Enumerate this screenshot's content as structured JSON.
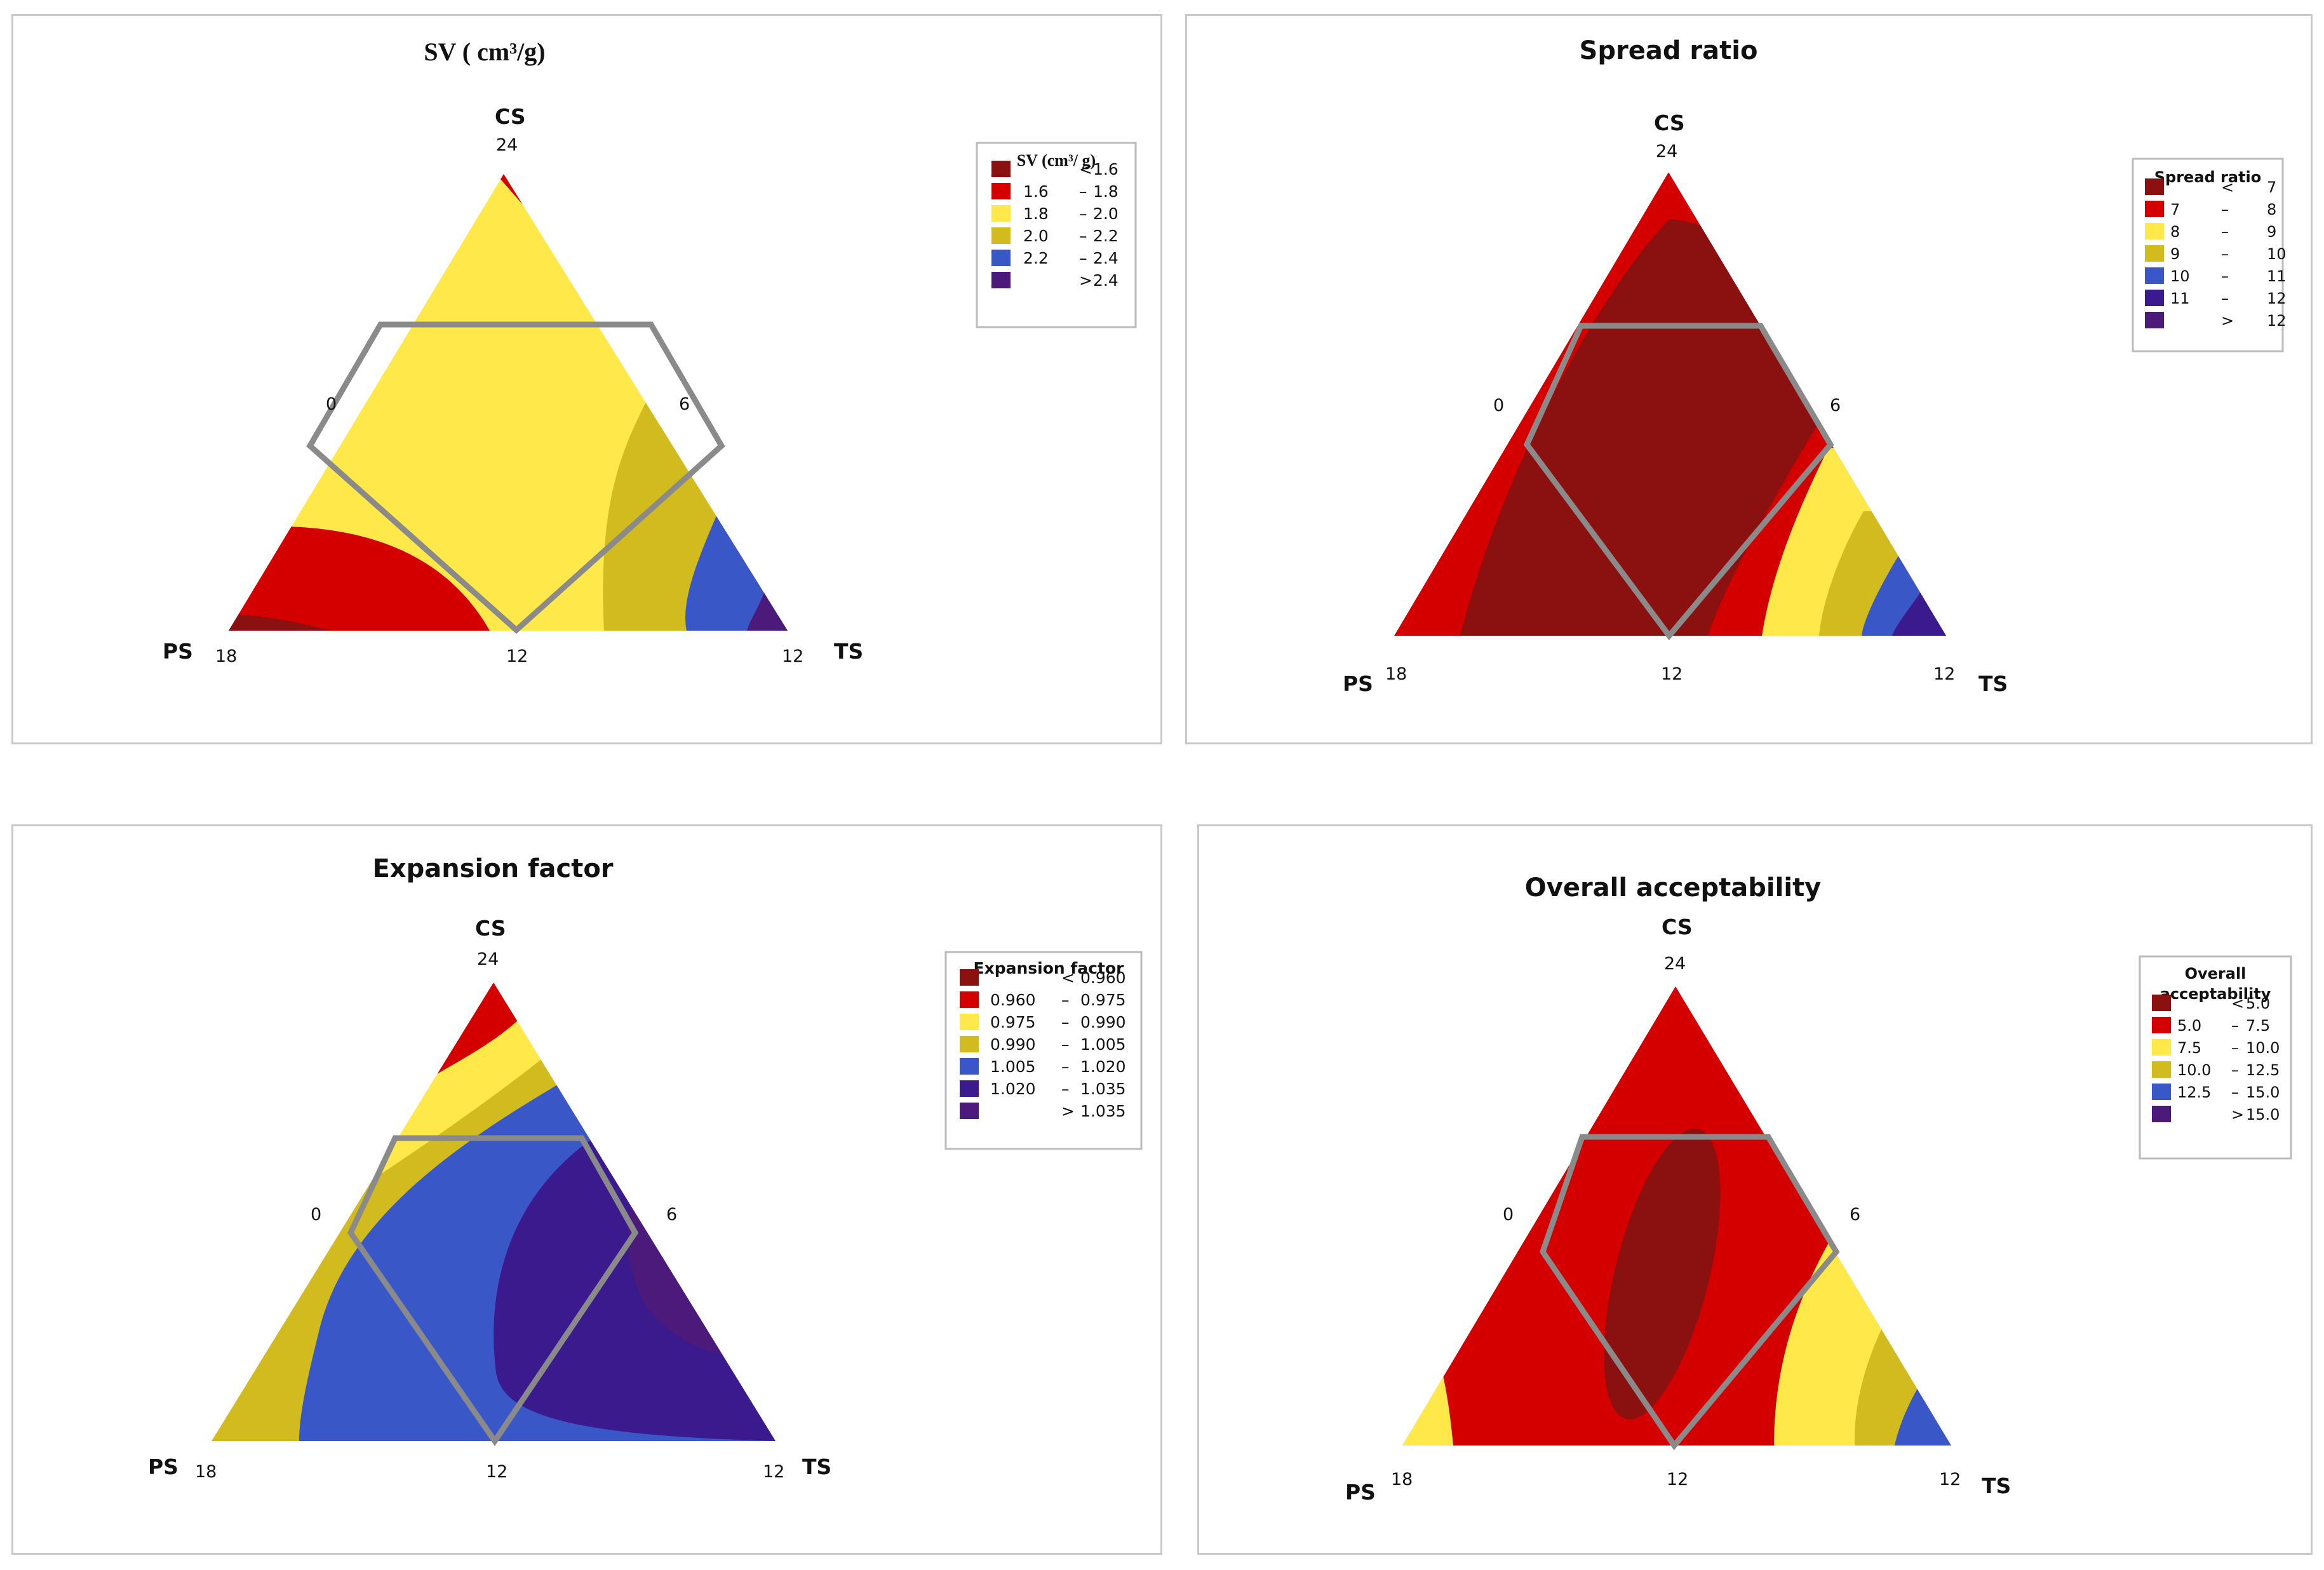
{
  "chart_data": [
    {
      "type": "ternary-contour",
      "title": "SV ( cm³/g)",
      "axes": {
        "top": "CS",
        "left": "PS",
        "right": "TS"
      },
      "tick_labels": {
        "top": "24",
        "left_corner": "18",
        "right_corner": "12",
        "bottom_mid": "12",
        "left_mid": "0",
        "right_mid": "6"
      },
      "legend": {
        "title": "SV (cm³/ g)",
        "entries": [
          {
            "op": "<",
            "lo": "",
            "hi": "1.6",
            "color": "#8B1010"
          },
          {
            "op": "–",
            "lo": "1.6",
            "hi": "1.8",
            "color": "#D40000"
          },
          {
            "op": "–",
            "lo": "1.8",
            "hi": "2.0",
            "color": "#FFE94A"
          },
          {
            "op": "–",
            "lo": "2.0",
            "hi": "2.2",
            "color": "#D2BB1E"
          },
          {
            "op": "–",
            "lo": "2.2",
            "hi": "2.4",
            "color": "#3A57C8"
          },
          {
            "op": ">",
            "lo": "",
            "hi": "2.4",
            "color": "#4B1A7A"
          }
        ]
      }
    },
    {
      "type": "ternary-contour",
      "title": "Spread ratio",
      "axes": {
        "top": "CS",
        "left": "PS",
        "right": "TS"
      },
      "tick_labels": {
        "top": "24",
        "left_corner": "18",
        "right_corner": "12",
        "bottom_mid": "12",
        "left_mid": "0",
        "right_mid": "6"
      },
      "legend": {
        "title": "Spread ratio",
        "entries": [
          {
            "op": "<",
            "lo": "",
            "hi": "7",
            "color": "#8B1010"
          },
          {
            "op": "–",
            "lo": "7",
            "hi": "8",
            "color": "#D40000"
          },
          {
            "op": "–",
            "lo": "8",
            "hi": "9",
            "color": "#FFE94A"
          },
          {
            "op": "–",
            "lo": "9",
            "hi": "10",
            "color": "#D2BB1E"
          },
          {
            "op": "–",
            "lo": "10",
            "hi": "11",
            "color": "#3A57C8"
          },
          {
            "op": "–",
            "lo": "11",
            "hi": "12",
            "color": "#3A1A8C"
          },
          {
            "op": ">",
            "lo": "",
            "hi": "12",
            "color": "#4B1A7A"
          }
        ]
      }
    },
    {
      "type": "ternary-contour",
      "title": "Expansion factor",
      "axes": {
        "top": "CS",
        "left": "PS",
        "right": "TS"
      },
      "tick_labels": {
        "top": "24",
        "left_corner": "18",
        "right_corner": "12",
        "bottom_mid": "12",
        "left_mid": "0",
        "right_mid": "6"
      },
      "legend": {
        "title": "Expansion factor",
        "entries": [
          {
            "op": "<",
            "lo": "",
            "hi": "0.960",
            "color": "#8B1010"
          },
          {
            "op": "–",
            "lo": "0.960",
            "hi": "0.975",
            "color": "#D40000"
          },
          {
            "op": "–",
            "lo": "0.975",
            "hi": "0.990",
            "color": "#FFE94A"
          },
          {
            "op": "–",
            "lo": "0.990",
            "hi": "1.005",
            "color": "#D2BB1E"
          },
          {
            "op": "–",
            "lo": "1.005",
            "hi": "1.020",
            "color": "#3A57C8"
          },
          {
            "op": "–",
            "lo": "1.020",
            "hi": "1.035",
            "color": "#3A1A8C"
          },
          {
            "op": ">",
            "lo": "",
            "hi": "1.035",
            "color": "#4B1A7A"
          }
        ]
      }
    },
    {
      "type": "ternary-contour",
      "title": "Overall acceptability",
      "axes": {
        "top": "CS",
        "left": "PS",
        "right": "TS"
      },
      "tick_labels": {
        "top": "24",
        "left_corner": "18",
        "right_corner": "12",
        "bottom_mid": "12",
        "left_mid": "0",
        "right_mid": "6"
      },
      "legend": {
        "title_line1": "Overall",
        "title_line2": "acceptability",
        "entries": [
          {
            "op": "<",
            "lo": "",
            "hi": "5.0",
            "color": "#8B1010"
          },
          {
            "op": "–",
            "lo": "5.0",
            "hi": "7.5",
            "color": "#D40000"
          },
          {
            "op": "–",
            "lo": "7.5",
            "hi": "10.0",
            "color": "#FFE94A"
          },
          {
            "op": "–",
            "lo": "10.0",
            "hi": "12.5",
            "color": "#D2BB1E"
          },
          {
            "op": "–",
            "lo": "12.5",
            "hi": "15.0",
            "color": "#3A57C8"
          },
          {
            "op": ">",
            "lo": "",
            "hi": "15.0",
            "color": "#4B1A7A"
          }
        ]
      }
    }
  ]
}
